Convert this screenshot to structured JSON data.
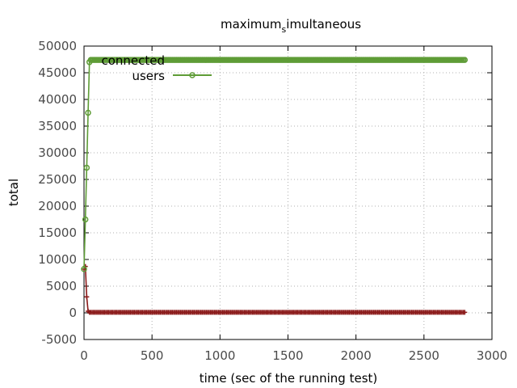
{
  "chart_data": {
    "type": "line",
    "title": "maximum",
    "title_sub": "s",
    "title_rest": "imultaneous",
    "xlabel": "time (sec of the running test)",
    "ylabel": "total",
    "xlim": [
      0,
      3000
    ],
    "ylim": [
      -5000,
      50000
    ],
    "xticks": [
      0,
      500,
      1000,
      1500,
      2000,
      2500,
      3000
    ],
    "yticks": [
      -5000,
      0,
      5000,
      10000,
      15000,
      20000,
      25000,
      30000,
      35000,
      40000,
      45000,
      50000
    ],
    "grid": true,
    "legend_position": "top-left",
    "series": [
      {
        "name_line1": "connected",
        "name_line2": "users",
        "color": "#5e9c36",
        "marker": "circle",
        "points": [
          [
            0,
            8200
          ],
          [
            10,
            17500
          ],
          [
            20,
            27200
          ],
          [
            30,
            37500
          ],
          [
            40,
            47000
          ],
          [
            50,
            47400
          ],
          [
            2800,
            47400
          ]
        ],
        "sample_every": 10
      },
      {
        "color": "#8b1a1a",
        "marker": "plus",
        "points": [
          [
            0,
            8200
          ],
          [
            10,
            8700
          ],
          [
            20,
            3000
          ],
          [
            30,
            300
          ],
          [
            40,
            100
          ],
          [
            2800,
            100
          ]
        ],
        "sample_every": 10
      }
    ]
  }
}
